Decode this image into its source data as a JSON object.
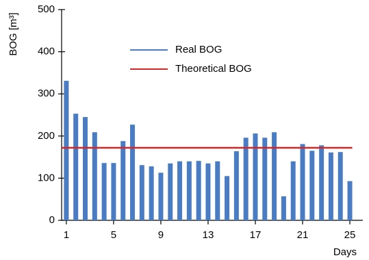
{
  "chart_data": {
    "type": "bar",
    "xlabel": "Days",
    "ylabel": "BOG [m³]",
    "series": [
      {
        "name": "Real BOG",
        "type": "bar",
        "color": "#4a7cc4",
        "x": [
          1,
          1.8,
          2.6,
          3.4,
          4.2,
          5,
          5.8,
          6.6,
          7.4,
          8.2,
          9,
          9.8,
          10.6,
          11.4,
          12.2,
          13,
          13.8,
          14.6,
          15.4,
          16.2,
          17,
          17.8,
          18.6,
          19.4,
          20.2,
          21,
          21.8,
          22.6,
          23.4,
          24.2,
          25
        ],
        "values": [
          331,
          253,
          245,
          209,
          136,
          136,
          188,
          227,
          131,
          128,
          113,
          135,
          140,
          140,
          141,
          135,
          140,
          105,
          164,
          196,
          206,
          196,
          209,
          57,
          140,
          181,
          165,
          178,
          161,
          162,
          93
        ]
      },
      {
        "name": "Theoretical BOG",
        "type": "hline",
        "color": "#d62728",
        "value": 172
      }
    ],
    "xlim": [
      0.6,
      26.1
    ],
    "xticks": [
      1,
      5,
      9,
      13,
      17,
      21,
      25
    ],
    "ylim": [
      0,
      500
    ],
    "yticks": [
      0,
      100,
      200,
      300,
      400,
      500
    ]
  }
}
